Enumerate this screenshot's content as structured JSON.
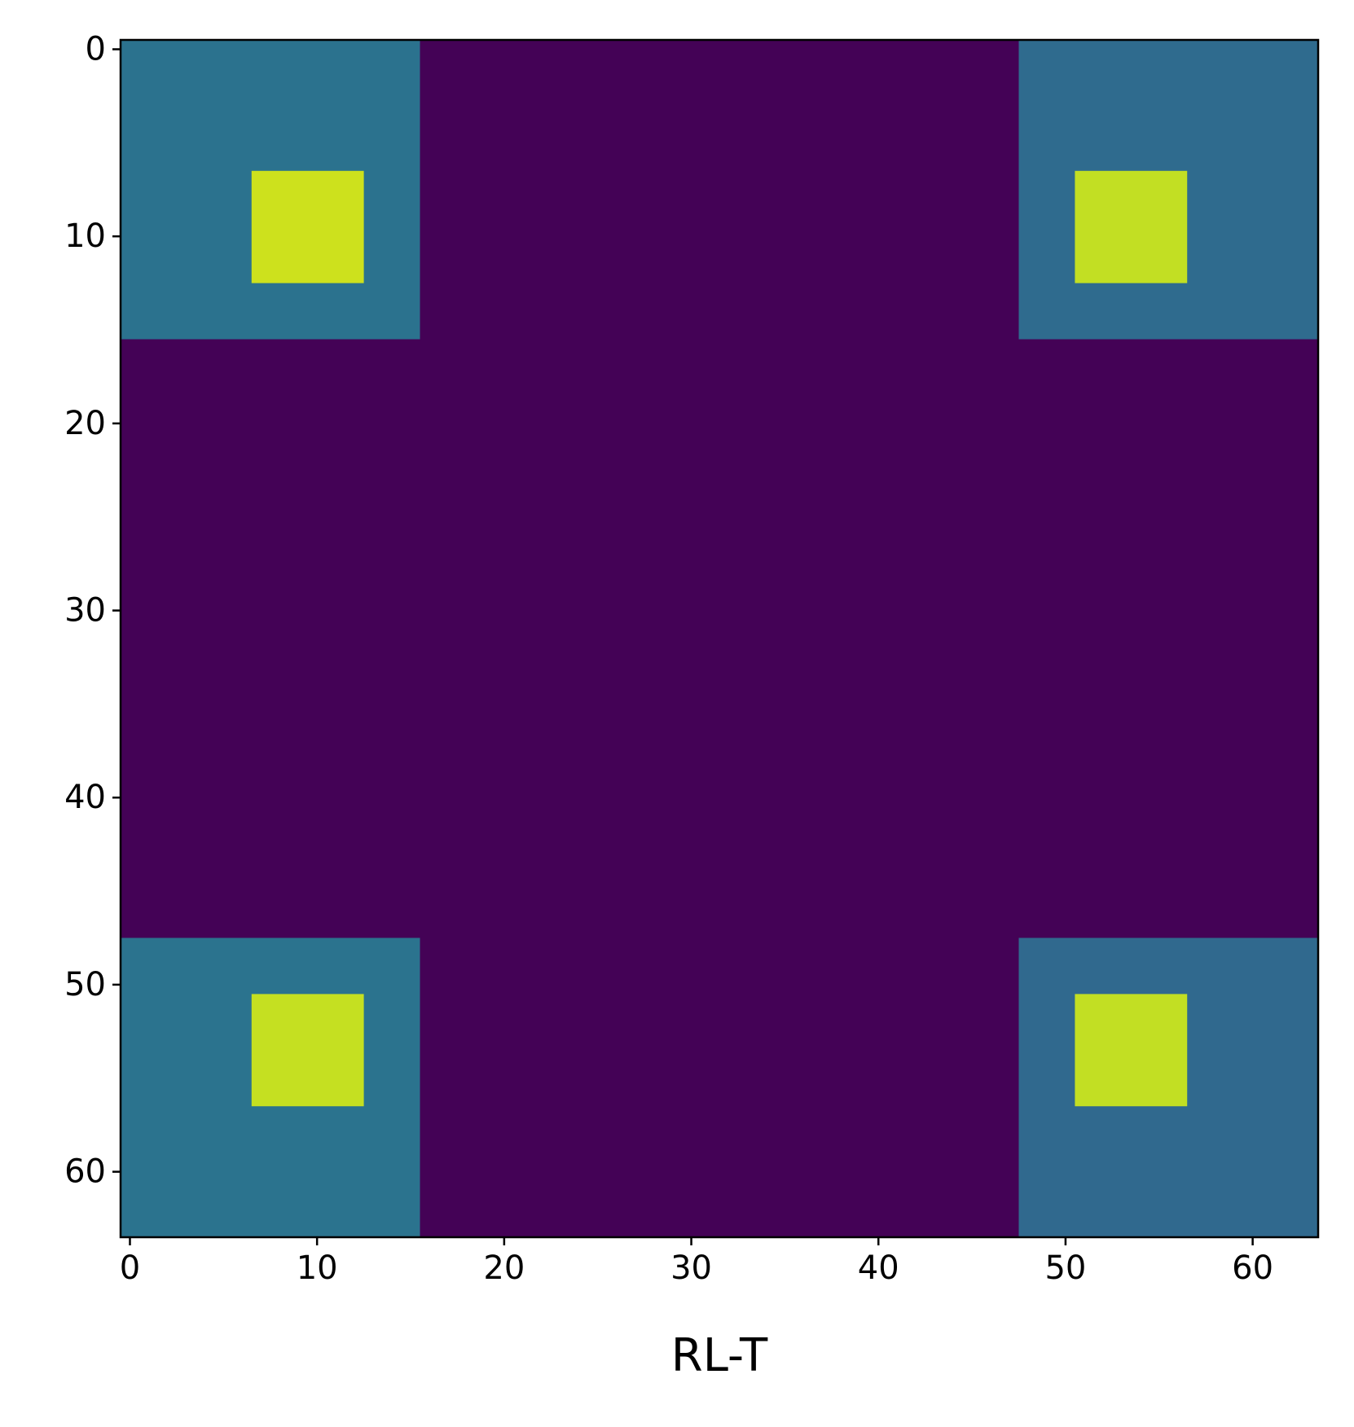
{
  "chart_data": {
    "type": "heatmap",
    "xlabel": "RL-T",
    "xlim": [
      -0.5,
      63.5
    ],
    "ylim": [
      63.5,
      -0.5
    ],
    "xticks": [
      0,
      10,
      20,
      30,
      40,
      50,
      60
    ],
    "yticks": [
      0,
      10,
      20,
      30,
      40,
      50,
      60
    ],
    "regions": [
      {
        "cols": [
          -0.5,
          63.5
        ],
        "rows": [
          -0.5,
          63.5
        ],
        "color": "#440256"
      },
      {
        "cols": [
          -0.5,
          15.5
        ],
        "rows": [
          -0.5,
          15.5
        ],
        "color": "#2b728e"
      },
      {
        "cols": [
          47.5,
          63.5
        ],
        "rows": [
          -0.5,
          15.5
        ],
        "color": "#2f6b8e"
      },
      {
        "cols": [
          -0.5,
          15.5
        ],
        "rows": [
          47.5,
          63.5
        ],
        "color": "#2b738e"
      },
      {
        "cols": [
          47.5,
          63.5
        ],
        "rows": [
          47.5,
          63.5
        ],
        "color": "#30698e"
      },
      {
        "cols": [
          6.5,
          12.5
        ],
        "rows": [
          6.5,
          12.5
        ],
        "color": "#cde11d"
      },
      {
        "cols": [
          50.5,
          56.5
        ],
        "rows": [
          6.5,
          12.5
        ],
        "color": "#c2df23"
      },
      {
        "cols": [
          6.5,
          12.5
        ],
        "rows": [
          50.5,
          56.5
        ],
        "color": "#c5e021"
      },
      {
        "cols": [
          50.5,
          56.5
        ],
        "rows": [
          50.5,
          56.5
        ],
        "color": "#c2df23"
      }
    ]
  }
}
